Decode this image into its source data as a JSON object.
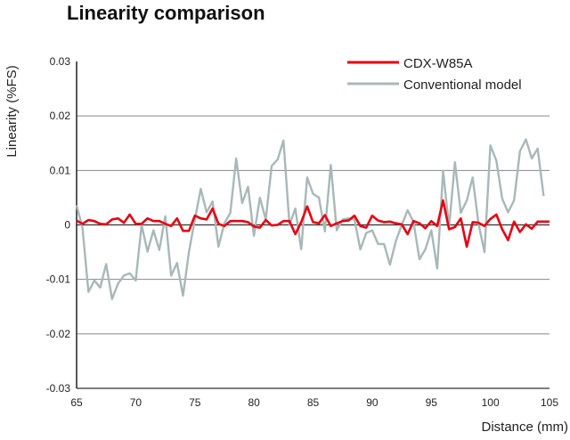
{
  "chart_data": {
    "type": "line",
    "title": "Linearity comparison",
    "xlabel": "Distance (mm)",
    "ylabel": "Linearity (%FS)",
    "xlim": [
      65,
      105
    ],
    "ylim": [
      -0.03,
      0.03
    ],
    "xticks": [
      "65",
      "70",
      "75",
      "80",
      "85",
      "90",
      "95",
      "100",
      "105"
    ],
    "yticks": [
      "0.03",
      "0.02",
      "0.01",
      "0",
      "-0.01",
      "-0.02",
      "-0.03"
    ],
    "grid": true,
    "legend_position": "top-right",
    "x_start": 65,
    "x_step": 0.5,
    "series": [
      {
        "name": "CDX-W85A",
        "color": "#e60012",
        "values": [
          0.0008,
          0.0002,
          0.0009,
          0.0007,
          0.0002,
          0.0001,
          0.001,
          0.0012,
          0.0004,
          0.0019,
          0.0002,
          0.0002,
          0.0012,
          0.0007,
          0.0007,
          0.0002,
          -0.0002,
          0.0012,
          -0.0011,
          -0.0011,
          0.0017,
          0.0012,
          0.001,
          0.003,
          0.0002,
          -0.0002,
          0.0007,
          0.0007,
          0.0007,
          0.0005,
          -0.0003,
          -0.0005,
          0.0009,
          -0.0001,
          0,
          0.0007,
          0.0007,
          -0.0017,
          0.0005,
          0.0034,
          0.0005,
          0.0003,
          0.0018,
          -0.0002,
          0.0003,
          0.0007,
          0.0008,
          0.0017,
          -0.0002,
          -0.0005,
          0.0017,
          0.0008,
          0.0005,
          0.0006,
          0.0003,
          0.0001,
          -0.0017,
          0.0007,
          0.0003,
          -0.0006,
          0.0007,
          -0.0002,
          0.0045,
          -0.0008,
          -0.0004,
          0.0012,
          -0.004,
          0.0005,
          0.0004,
          -0.0002,
          0.0011,
          0.0019,
          -0.0008,
          -0.0028,
          0.0006,
          -0.0013,
          0.0001,
          -0.0007,
          0.0006,
          0.0006,
          0.0006
        ]
      },
      {
        "name": "Conventional model",
        "color": "#a8b8b8",
        "values": [
          0.0036,
          -0.0005,
          -0.0123,
          -0.0102,
          -0.0115,
          -0.0072,
          -0.0136,
          -0.0108,
          -0.0093,
          -0.0089,
          -0.0102,
          0,
          -0.0049,
          -0.001,
          -0.0046,
          0.0016,
          -0.0093,
          -0.007,
          -0.013,
          -0.005,
          0.001,
          0.0066,
          0.0023,
          0.0043,
          -0.004,
          0.0003,
          0.0022,
          0.0122,
          0.004,
          0.007,
          -0.002,
          0.005,
          0.001,
          0.0108,
          0.012,
          0.0155,
          0,
          0.003,
          -0.0045,
          0.0087,
          0.0057,
          0.005,
          -0.0012,
          0.011,
          -0.001,
          0.001,
          0.0012,
          0.001,
          -0.0045,
          -0.0015,
          -0.001,
          -0.0035,
          -0.0035,
          -0.0073,
          -0.003,
          0,
          0.0027,
          0.0005,
          -0.0063,
          -0.0045,
          -0.001,
          -0.008,
          0.0099,
          -0.0004,
          0.0115,
          0.0022,
          0.0045,
          0.0087,
          0.0002,
          -0.005,
          0.0146,
          0.0118,
          0.0048,
          0.0023,
          0.0045,
          0.0135,
          0.0157,
          0.0122,
          0.014,
          0.0053
        ]
      }
    ]
  }
}
